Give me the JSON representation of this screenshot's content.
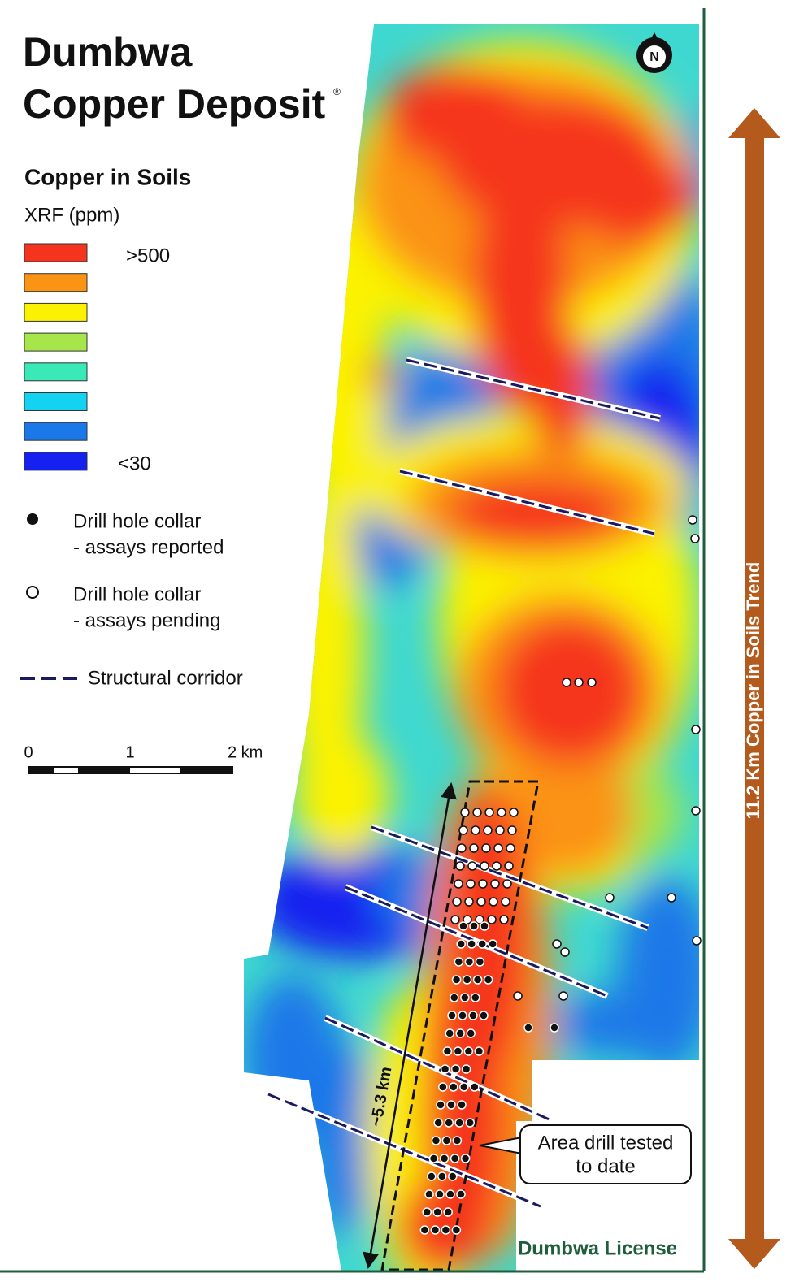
{
  "title": {
    "line1": "Dumbwa",
    "line2": "Copper Deposit",
    "mark": "®"
  },
  "legend": {
    "title": "Copper in Soils",
    "subtitle": "XRF (ppm)",
    "high": ">500",
    "low": "<30",
    "colors": [
      "#f5341e",
      "#fb9314",
      "#fbf203",
      "#a6e64a",
      "#39e9b6",
      "#13d2f2",
      "#1a78e8",
      "#1421ef"
    ],
    "drill_reported": [
      "Drill hole collar",
      "- assays reported"
    ],
    "drill_pending": [
      "Drill hole collar",
      "- assays pending"
    ],
    "corridor": "Structural corridor"
  },
  "scale": {
    "ticks": [
      "0",
      "1",
      "2 km"
    ]
  },
  "north": "N",
  "trend": "11.2 Km Copper in Soils Trend",
  "length": "~5.3 km",
  "callout": [
    "Area drill tested",
    "to date"
  ],
  "license": "Dumbwa License"
}
